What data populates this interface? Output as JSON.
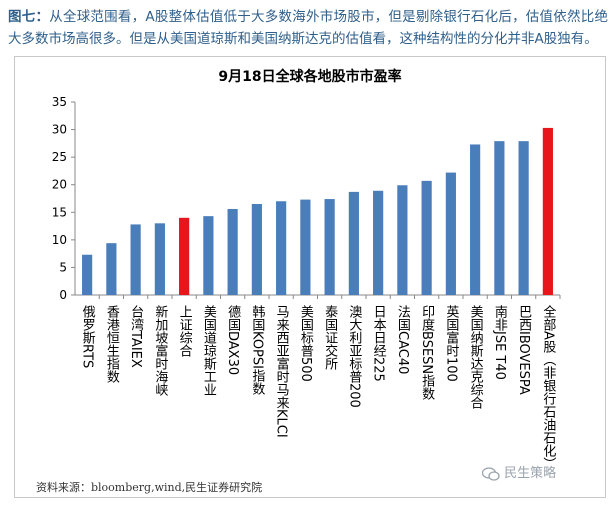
{
  "caption": {
    "tag": "图七：",
    "text": "从全球范围看，A股整体估值低于大多数海外市场股市，但是剔除银行石化后，估值依然比绝大多数市场高很多。但是从美国道琼斯和美国纳斯达克的估值看，这种结构性的分化并非A股独有。"
  },
  "chart_data": {
    "type": "bar",
    "title": "9月18日全球各地股市市盈率",
    "xlabel": "",
    "ylabel": "",
    "ylim": [
      0,
      35
    ],
    "yticks": [
      0,
      5,
      10,
      15,
      20,
      25,
      30,
      35
    ],
    "grid": false,
    "categories": [
      "俄罗斯RTS",
      "香港恒生指数",
      "台湾TAIEX",
      "新加坡富时海峡",
      "上证综合",
      "美国道琼斯工业",
      "德国DAX30",
      "韩国KOPSI指数",
      "马来西亚富时马来KLCI",
      "美国标普500",
      "泰国证交所",
      "澳大利亚标普200",
      "日本日经225",
      "法国CAC40",
      "印度BSESN指数",
      "英国富时100",
      "美国纳斯达克综合",
      "南非JSE T40",
      "巴西IBOVESPA",
      "全部A股（非银行石油石化）"
    ],
    "values": [
      7.3,
      9.4,
      12.8,
      13.0,
      14.0,
      14.3,
      15.6,
      16.5,
      17.0,
      17.3,
      17.4,
      18.7,
      18.9,
      19.9,
      20.7,
      22.2,
      27.3,
      27.9,
      27.9,
      30.3
    ],
    "colors": {
      "default": "#4a7ebb",
      "highlight": "#e8161b",
      "highlighted_categories": [
        "上证综合",
        "全部A股（非银行石油石化）"
      ]
    }
  },
  "source": "资料来源：bloomberg,wind,民生证券研究院",
  "brand": "民生策略"
}
